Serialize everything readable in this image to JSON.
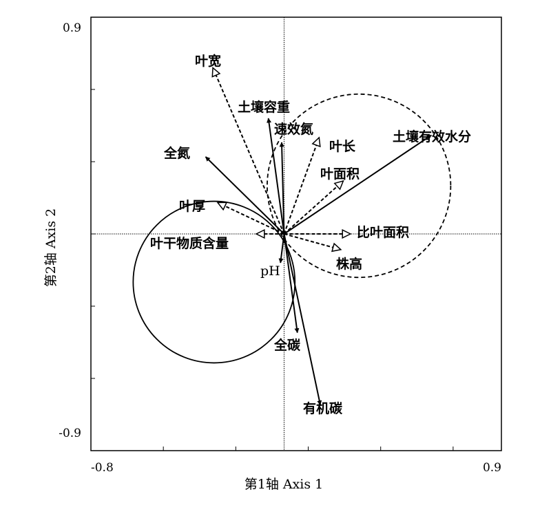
{
  "chart_data": {
    "type": "scatter",
    "subtype": "ordination-biplot",
    "xlabel": "第1轴 Axis 1",
    "ylabel": "第2轴 Axis 2",
    "xlim": [
      -0.8,
      0.9
    ],
    "ylim": [
      -0.9,
      0.9
    ],
    "x_tick_labels": [
      "-0.8",
      "0.9"
    ],
    "y_tick_labels": [
      "0.9",
      "-0.9"
    ],
    "origin_lines": "dotted",
    "vectors": [
      {
        "label": "叶宽",
        "x": -0.295,
        "y": 0.69,
        "style": "dashed",
        "head": "open"
      },
      {
        "label": "土壤容重",
        "x": -0.065,
        "y": 0.48,
        "style": "solid",
        "head": "filled"
      },
      {
        "label": "速效氮",
        "x": -0.01,
        "y": 0.38,
        "style": "solid",
        "head": "filled"
      },
      {
        "label": "叶长",
        "x": 0.145,
        "y": 0.4,
        "style": "dashed",
        "head": "open"
      },
      {
        "label": "全氮",
        "x": -0.325,
        "y": 0.32,
        "style": "solid",
        "head": "filled"
      },
      {
        "label": "土壤有效水分",
        "x": 0.61,
        "y": 0.41,
        "style": "solid",
        "head": "filled"
      },
      {
        "label": "叶面积",
        "x": 0.245,
        "y": 0.22,
        "style": "dashed",
        "head": "open"
      },
      {
        "label": "叶厚",
        "x": -0.275,
        "y": 0.13,
        "style": "dashed",
        "head": "open"
      },
      {
        "label": "叶干物质含量",
        "x": -0.115,
        "y": 0.0,
        "style": "dashed",
        "head": "open"
      },
      {
        "label": "比叶面积",
        "x": 0.275,
        "y": 0.0,
        "style": "dashed",
        "head": "open"
      },
      {
        "label": "株高",
        "x": 0.235,
        "y": -0.065,
        "style": "dashed",
        "head": "open"
      },
      {
        "label": "pH",
        "x": -0.015,
        "y": -0.12,
        "style": "solid",
        "head": "filled"
      },
      {
        "label": "全碳",
        "x": 0.055,
        "y": -0.41,
        "style": "solid",
        "head": "filled"
      },
      {
        "label": "有机碳",
        "x": 0.15,
        "y": -0.71,
        "style": "solid",
        "head": "filled"
      }
    ],
    "circles": [
      {
        "cx": -0.29,
        "cy": -0.2,
        "r": 0.335,
        "style": "solid"
      },
      {
        "cx": 0.31,
        "cy": 0.2,
        "r": 0.38,
        "style": "dashed"
      }
    ]
  }
}
